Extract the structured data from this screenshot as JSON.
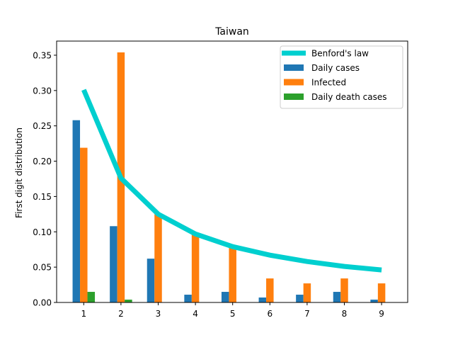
{
  "chart_data": {
    "type": "bar",
    "title": "Taiwan",
    "xlabel": "",
    "ylabel": "First digit distribution",
    "categories": [
      "1",
      "2",
      "3",
      "4",
      "5",
      "6",
      "7",
      "8",
      "9"
    ],
    "ylim": [
      0,
      0.37
    ],
    "yticks": [
      "0.00",
      "0.05",
      "0.10",
      "0.15",
      "0.20",
      "0.25",
      "0.30",
      "0.35"
    ],
    "grid": false,
    "legend_position": "top-right",
    "line_series": {
      "name": "Benford's law",
      "color": "#00cfcf",
      "values": [
        0.301,
        0.176,
        0.125,
        0.097,
        0.079,
        0.067,
        0.058,
        0.051,
        0.046
      ]
    },
    "series": [
      {
        "name": "Daily cases",
        "color": "#1f77b4",
        "values": [
          0.258,
          0.108,
          0.062,
          0.011,
          0.015,
          0.007,
          0.011,
          0.015,
          0.004
        ]
      },
      {
        "name": "Infected",
        "color": "#ff7f0e",
        "values": [
          0.219,
          0.354,
          0.125,
          0.097,
          0.078,
          0.034,
          0.027,
          0.034,
          0.027
        ]
      },
      {
        "name": "Daily death cases",
        "color": "#2ca02c",
        "values": [
          0.015,
          0.004,
          0,
          0,
          0,
          0,
          0,
          0,
          0
        ]
      }
    ]
  }
}
